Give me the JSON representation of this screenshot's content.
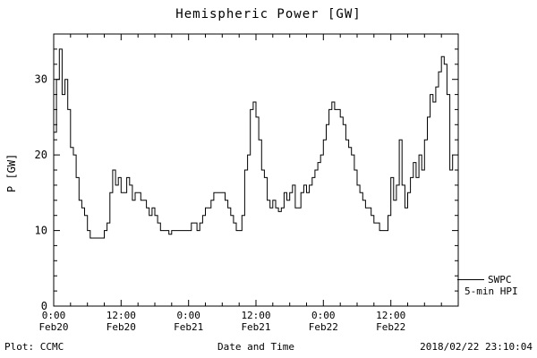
{
  "title": "Hemispheric Power [GW]",
  "footer": {
    "plot_credit": "Plot: CCMC",
    "xlabel": "Date and Time",
    "timestamp": "2018/02/22 23:10:04"
  },
  "legend": {
    "source": "SWPC",
    "series": "5-min HPI"
  },
  "chart_data": {
    "type": "line",
    "title": "Hemispheric Power [GW]",
    "xlabel": "Date and Time",
    "ylabel": "P [GW]",
    "ylim": [
      0,
      36
    ],
    "xlim_hours": [
      0,
      72
    ],
    "y_ticks": [
      0,
      10,
      20,
      30
    ],
    "y_minor_step": 2,
    "x_minor_step_hours": 3,
    "x_ticks": [
      {
        "hours": 0,
        "time": "0:00",
        "date": "Feb20"
      },
      {
        "hours": 12,
        "time": "12:00",
        "date": "Feb20"
      },
      {
        "hours": 24,
        "time": "0:00",
        "date": "Feb21"
      },
      {
        "hours": 36,
        "time": "12:00",
        "date": "Feb21"
      },
      {
        "hours": 48,
        "time": "0:00",
        "date": "Feb22"
      },
      {
        "hours": 60,
        "time": "12:00",
        "date": "Feb22"
      }
    ],
    "line_color": "#000000",
    "background": "#ffffff",
    "grid": false,
    "legend_position": "right-outside-bottom",
    "series": [
      {
        "name": "5-min HPI",
        "source": "SWPC",
        "x_start_hours": 0,
        "x_step_hours": 0.5,
        "values": [
          23,
          30,
          34,
          28,
          30,
          26,
          21,
          20,
          17,
          14,
          13,
          12,
          10,
          9,
          9,
          9,
          9,
          9,
          10,
          11,
          15,
          18,
          16,
          17,
          15,
          15,
          17,
          16,
          14,
          15,
          15,
          14,
          14,
          13,
          12,
          13,
          12,
          11,
          10,
          10,
          10,
          9.5,
          10,
          10,
          10,
          10,
          10,
          10,
          10,
          11,
          11,
          10,
          11,
          12,
          13,
          13,
          14,
          15,
          15,
          15,
          15,
          14,
          13,
          12,
          11,
          10,
          10,
          12,
          18,
          20,
          26,
          27,
          25,
          22,
          18,
          17,
          14,
          13,
          14,
          13,
          12.5,
          13,
          15,
          14,
          15,
          16,
          13,
          13,
          15,
          16,
          15,
          16,
          17,
          18,
          19,
          20,
          22,
          24,
          26,
          27,
          26,
          26,
          25,
          24,
          22,
          21,
          20,
          18,
          16,
          15,
          14,
          13,
          13,
          12,
          11,
          11,
          10,
          10,
          10,
          12,
          17,
          14,
          16,
          22,
          16,
          13,
          15,
          17,
          19,
          17,
          20,
          18,
          22,
          25,
          28,
          27,
          29,
          31,
          33,
          32,
          28,
          18,
          20
        ]
      }
    ]
  }
}
